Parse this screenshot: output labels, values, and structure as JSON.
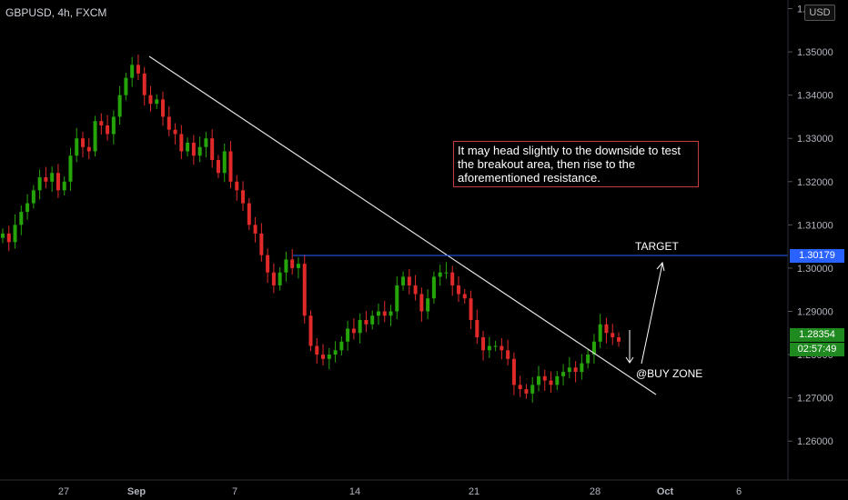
{
  "header": {
    "symbol": "GBPUSD, 4h, FXCM",
    "currency": "USD"
  },
  "annotations": {
    "note": "It may head slightly to the downside to test the breakout area, then rise to the aforementioned resistance.",
    "target": "TARGET",
    "buy_zone": "@BUY ZONE"
  },
  "price_tags": {
    "target_price": "1.30179",
    "last_price": "1.28354",
    "countdown": "02:57:49"
  },
  "colors": {
    "bull": "#26a50a",
    "bear": "#e02a2a",
    "target_line": "#2962ff",
    "countdown_bg": "#1f8a1f"
  },
  "chart_data": {
    "type": "candlestick",
    "title": "GBPUSD, 4h, FXCM",
    "x_tick_labels": [
      "27",
      "Sep",
      "7",
      "14",
      "21",
      "28",
      "Oct",
      "6"
    ],
    "y_tick_labels": [
      "1.36000",
      "1.35000",
      "1.34000",
      "1.33000",
      "1.32000",
      "1.31000",
      "1.30000",
      "1.29000",
      "1.28000",
      "1.27000",
      "1.26000"
    ],
    "ylim": [
      1.251,
      1.362
    ],
    "grid": false,
    "series": [
      {
        "name": "",
        "close": [
          1.308,
          1.306,
          1.31,
          1.313,
          1.315,
          1.318,
          1.321,
          1.32,
          1.322,
          1.318,
          1.32,
          1.326,
          1.33,
          1.328,
          1.327,
          1.334,
          1.333,
          1.331,
          1.335,
          1.34,
          1.344,
          1.347,
          1.345,
          1.34,
          1.338,
          1.339,
          1.335,
          1.332,
          1.331,
          1.327,
          1.329,
          1.326,
          1.328,
          1.33,
          1.325,
          1.322,
          1.327,
          1.32,
          1.318,
          1.315,
          1.31,
          1.308,
          1.303,
          1.299,
          1.296,
          1.299,
          1.302,
          1.3,
          1.301,
          1.289,
          1.282,
          1.28,
          1.279,
          1.28,
          1.281,
          1.283,
          1.286,
          1.285,
          1.288,
          1.287,
          1.289,
          1.29,
          1.289,
          1.29,
          1.296,
          1.298,
          1.296,
          1.294,
          1.29,
          1.293,
          1.298,
          1.299,
          1.299,
          1.296,
          1.294,
          1.293,
          1.288,
          1.284,
          1.281,
          1.282,
          1.282,
          1.281,
          1.279,
          1.273,
          1.272,
          1.271,
          1.273,
          1.275,
          1.274,
          1.273,
          1.275,
          1.276,
          1.277,
          1.276,
          1.278,
          1.28,
          1.283,
          1.287,
          1.285,
          1.284,
          1.283
        ]
      }
    ],
    "annotations": [
      {
        "type": "trendline",
        "from": [
          1.348
        ],
        "to": [
          1.27
        ]
      },
      {
        "type": "hline",
        "value": 1.30179,
        "label": "TARGET"
      },
      {
        "type": "text",
        "text": "It may head slightly to the downside to test the breakout area, then rise to the aforementioned resistance."
      },
      {
        "type": "text",
        "text": "@BUY ZONE"
      }
    ]
  }
}
